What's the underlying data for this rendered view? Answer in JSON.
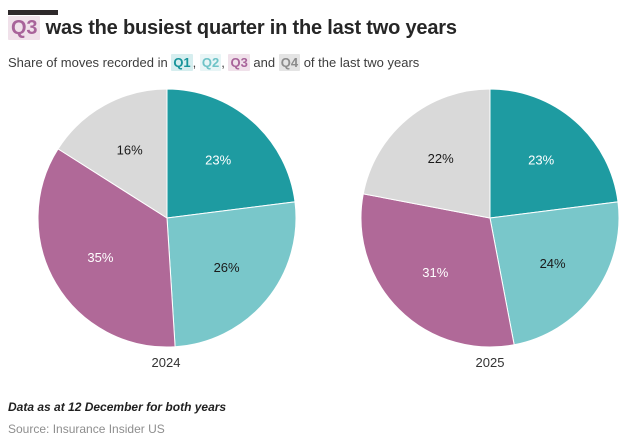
{
  "header": {
    "kicker_bar_color": "#2e2a2b",
    "title_highlight": "Q3",
    "title_rest": " was the busiest quarter in the last two years",
    "subtitle": {
      "part1": "Share of moves recorded in ",
      "q1": "Q1",
      "comma1": ", ",
      "q2": "Q2",
      "comma2": ", ",
      "q3": "Q3",
      "and": " and ",
      "q4": "Q4",
      "part2": " of the last two years"
    }
  },
  "quarter_styles": {
    "q1": {
      "color": "#17949a",
      "bg": "#d6eeef"
    },
    "q2": {
      "color": "#6ec3c7",
      "bg": "#e8f5f6"
    },
    "q3": {
      "color": "#a8639a",
      "bg": "#f0e1ea"
    },
    "q4": {
      "color": "#8c8c8c",
      "bg": "#e4e4e4"
    }
  },
  "chart_data": [
    {
      "type": "pie",
      "title": "2024",
      "categories": [
        "Q1",
        "Q2",
        "Q3",
        "Q4"
      ],
      "values": [
        23,
        26,
        35,
        16
      ],
      "labels": [
        "23%",
        "26%",
        "35%",
        "16%"
      ],
      "colors": [
        "#1e9ba1",
        "#79c7ca",
        "#b06998",
        "#d9d9d9"
      ],
      "label_colors": [
        "#ffffff",
        "#1a1a1a",
        "#ffffff",
        "#1a1a1a"
      ],
      "start_angle_deg": 0,
      "direction": "clockwise",
      "legend_position": "none"
    },
    {
      "type": "pie",
      "title": "2025",
      "categories": [
        "Q1",
        "Q2",
        "Q3",
        "Q4"
      ],
      "values": [
        23,
        24,
        31,
        22
      ],
      "labels": [
        "23%",
        "24%",
        "31%",
        "22%"
      ],
      "colors": [
        "#1e9ba1",
        "#79c7ca",
        "#b06998",
        "#d9d9d9"
      ],
      "label_colors": [
        "#ffffff",
        "#1a1a1a",
        "#ffffff",
        "#1a1a1a"
      ],
      "start_angle_deg": 0,
      "direction": "clockwise",
      "legend_position": "none"
    }
  ],
  "footer": {
    "note": "Data as at 12 December for both years",
    "source": "Source: Insurance Insider US"
  }
}
